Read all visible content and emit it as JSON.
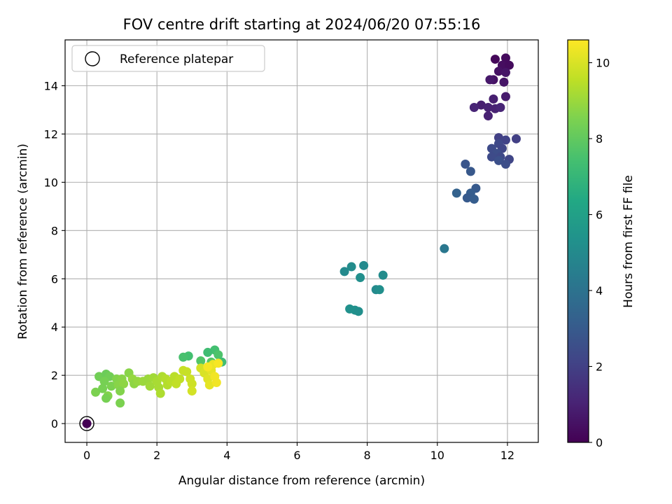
{
  "chart_data": {
    "type": "scatter",
    "title": "FOV centre drift starting at 2024/06/20 07:55:16",
    "xlabel": "Angular distance from reference (arcmin)",
    "ylabel": "Rotation from reference (arcmin)",
    "xlim": [
      -0.62,
      12.88
    ],
    "ylim": [
      -0.78,
      15.9
    ],
    "xticks": [
      0,
      2,
      4,
      6,
      8,
      10,
      12
    ],
    "yticks": [
      0,
      2,
      4,
      6,
      8,
      10,
      12,
      14
    ],
    "grid": true,
    "legend": {
      "placement": "top-left",
      "entries": [
        "Reference platepar"
      ]
    },
    "reference_point": {
      "x": 0,
      "y": 0,
      "label": "Reference platepar"
    },
    "colorbar": {
      "label": "Hours from first FF file",
      "colormap": "viridis",
      "range": [
        0,
        10.6
      ],
      "ticks": [
        0,
        2,
        4,
        6,
        8,
        10
      ]
    },
    "points": [
      {
        "x": 11.65,
        "y": 15.1,
        "h": 0.2
      },
      {
        "x": 11.95,
        "y": 15.15,
        "h": 0.3
      },
      {
        "x": 11.85,
        "y": 14.85,
        "h": 0.4
      },
      {
        "x": 12.05,
        "y": 14.85,
        "h": 0.3
      },
      {
        "x": 11.75,
        "y": 14.6,
        "h": 0.5
      },
      {
        "x": 11.95,
        "y": 14.55,
        "h": 0.6
      },
      {
        "x": 11.6,
        "y": 14.25,
        "h": 0.5
      },
      {
        "x": 11.5,
        "y": 14.25,
        "h": 0.7
      },
      {
        "x": 11.9,
        "y": 14.15,
        "h": 0.6
      },
      {
        "x": 11.95,
        "y": 13.55,
        "h": 0.8
      },
      {
        "x": 11.6,
        "y": 13.45,
        "h": 0.9
      },
      {
        "x": 11.25,
        "y": 13.2,
        "h": 0.9
      },
      {
        "x": 11.45,
        "y": 13.1,
        "h": 1.0
      },
      {
        "x": 11.65,
        "y": 13.05,
        "h": 1.0
      },
      {
        "x": 11.8,
        "y": 13.1,
        "h": 1.1
      },
      {
        "x": 11.05,
        "y": 13.1,
        "h": 1.1
      },
      {
        "x": 11.45,
        "y": 12.75,
        "h": 1.0
      },
      {
        "x": 11.75,
        "y": 11.85,
        "h": 2.0
      },
      {
        "x": 11.95,
        "y": 11.75,
        "h": 2.1
      },
      {
        "x": 12.25,
        "y": 11.8,
        "h": 2.0
      },
      {
        "x": 11.75,
        "y": 11.6,
        "h": 2.3
      },
      {
        "x": 11.55,
        "y": 11.4,
        "h": 2.4
      },
      {
        "x": 11.85,
        "y": 11.4,
        "h": 2.2
      },
      {
        "x": 11.7,
        "y": 11.2,
        "h": 2.5
      },
      {
        "x": 11.55,
        "y": 11.05,
        "h": 2.4
      },
      {
        "x": 11.8,
        "y": 11.05,
        "h": 2.3
      },
      {
        "x": 12.05,
        "y": 10.95,
        "h": 2.2
      },
      {
        "x": 11.75,
        "y": 10.9,
        "h": 2.6
      },
      {
        "x": 11.95,
        "y": 10.75,
        "h": 2.5
      },
      {
        "x": 10.8,
        "y": 10.75,
        "h": 2.8
      },
      {
        "x": 10.95,
        "y": 10.45,
        "h": 2.9
      },
      {
        "x": 11.1,
        "y": 9.75,
        "h": 3.0
      },
      {
        "x": 10.95,
        "y": 9.55,
        "h": 3.1
      },
      {
        "x": 10.55,
        "y": 9.55,
        "h": 3.3
      },
      {
        "x": 10.85,
        "y": 9.35,
        "h": 3.0
      },
      {
        "x": 11.05,
        "y": 9.3,
        "h": 3.1
      },
      {
        "x": 10.2,
        "y": 7.25,
        "h": 4.2
      },
      {
        "x": 7.35,
        "y": 6.3,
        "h": 5.0
      },
      {
        "x": 7.55,
        "y": 6.5,
        "h": 5.1
      },
      {
        "x": 7.9,
        "y": 6.55,
        "h": 5.0
      },
      {
        "x": 7.8,
        "y": 6.05,
        "h": 5.2
      },
      {
        "x": 8.45,
        "y": 6.15,
        "h": 5.1
      },
      {
        "x": 8.25,
        "y": 5.55,
        "h": 5.0
      },
      {
        "x": 8.35,
        "y": 5.55,
        "h": 5.2
      },
      {
        "x": 7.5,
        "y": 4.75,
        "h": 5.3
      },
      {
        "x": 7.65,
        "y": 4.7,
        "h": 5.3
      },
      {
        "x": 7.75,
        "y": 4.65,
        "h": 5.2
      },
      {
        "x": 3.65,
        "y": 3.05,
        "h": 7.4
      },
      {
        "x": 3.45,
        "y": 2.95,
        "h": 7.3
      },
      {
        "x": 3.75,
        "y": 2.85,
        "h": 7.6
      },
      {
        "x": 2.9,
        "y": 2.8,
        "h": 7.4
      },
      {
        "x": 2.75,
        "y": 2.75,
        "h": 7.5
      },
      {
        "x": 3.85,
        "y": 2.55,
        "h": 7.3
      },
      {
        "x": 3.25,
        "y": 2.6,
        "h": 7.7
      },
      {
        "x": 3.55,
        "y": 2.55,
        "h": 7.8
      },
      {
        "x": 0.25,
        "y": 1.3,
        "h": 8.5
      },
      {
        "x": 0.45,
        "y": 1.45,
        "h": 8.4
      },
      {
        "x": 0.35,
        "y": 1.95,
        "h": 8.3
      },
      {
        "x": 0.55,
        "y": 2.05,
        "h": 8.2
      },
      {
        "x": 0.65,
        "y": 1.95,
        "h": 8.3
      },
      {
        "x": 0.5,
        "y": 1.75,
        "h": 8.4
      },
      {
        "x": 0.7,
        "y": 1.55,
        "h": 8.5
      },
      {
        "x": 0.6,
        "y": 1.15,
        "h": 8.6
      },
      {
        "x": 0.55,
        "y": 1.05,
        "h": 8.4
      },
      {
        "x": 0.85,
        "y": 1.85,
        "h": 8.6
      },
      {
        "x": 0.9,
        "y": 1.6,
        "h": 8.7
      },
      {
        "x": 1.0,
        "y": 1.85,
        "h": 8.7
      },
      {
        "x": 1.05,
        "y": 1.65,
        "h": 8.8
      },
      {
        "x": 0.95,
        "y": 1.35,
        "h": 8.6
      },
      {
        "x": 0.95,
        "y": 0.85,
        "h": 8.5
      },
      {
        "x": 1.2,
        "y": 2.1,
        "h": 8.7
      },
      {
        "x": 1.3,
        "y": 1.85,
        "h": 8.9
      },
      {
        "x": 1.35,
        "y": 1.65,
        "h": 8.8
      },
      {
        "x": 1.45,
        "y": 1.75,
        "h": 8.9
      },
      {
        "x": 1.6,
        "y": 1.75,
        "h": 9.0
      },
      {
        "x": 1.75,
        "y": 1.85,
        "h": 9.0
      },
      {
        "x": 1.8,
        "y": 1.55,
        "h": 9.1
      },
      {
        "x": 1.9,
        "y": 1.9,
        "h": 9.1
      },
      {
        "x": 2.0,
        "y": 1.75,
        "h": 9.2
      },
      {
        "x": 2.05,
        "y": 1.5,
        "h": 9.2
      },
      {
        "x": 2.1,
        "y": 1.25,
        "h": 9.3
      },
      {
        "x": 2.15,
        "y": 1.95,
        "h": 9.3
      },
      {
        "x": 2.25,
        "y": 1.85,
        "h": 9.4
      },
      {
        "x": 2.3,
        "y": 1.6,
        "h": 9.4
      },
      {
        "x": 2.4,
        "y": 1.75,
        "h": 9.5
      },
      {
        "x": 2.5,
        "y": 1.95,
        "h": 9.5
      },
      {
        "x": 2.55,
        "y": 1.65,
        "h": 9.6
      },
      {
        "x": 2.65,
        "y": 1.85,
        "h": 9.6
      },
      {
        "x": 2.75,
        "y": 2.2,
        "h": 9.7
      },
      {
        "x": 2.85,
        "y": 2.15,
        "h": 9.7
      },
      {
        "x": 2.95,
        "y": 1.85,
        "h": 9.8
      },
      {
        "x": 3.0,
        "y": 1.65,
        "h": 9.8
      },
      {
        "x": 3.0,
        "y": 1.35,
        "h": 9.9
      },
      {
        "x": 3.25,
        "y": 2.3,
        "h": 9.9
      },
      {
        "x": 3.35,
        "y": 2.1,
        "h": 10.0
      },
      {
        "x": 3.45,
        "y": 1.85,
        "h": 10.1
      },
      {
        "x": 3.5,
        "y": 1.6,
        "h": 10.2
      },
      {
        "x": 3.55,
        "y": 2.2,
        "h": 10.2
      },
      {
        "x": 3.6,
        "y": 2.45,
        "h": 10.3
      },
      {
        "x": 3.65,
        "y": 1.95,
        "h": 10.4
      },
      {
        "x": 3.7,
        "y": 1.7,
        "h": 10.4
      },
      {
        "x": 3.75,
        "y": 2.5,
        "h": 10.5
      },
      {
        "x": 3.45,
        "y": 2.35,
        "h": 10.5
      },
      {
        "x": 0,
        "y": 0,
        "h": 0
      }
    ]
  }
}
